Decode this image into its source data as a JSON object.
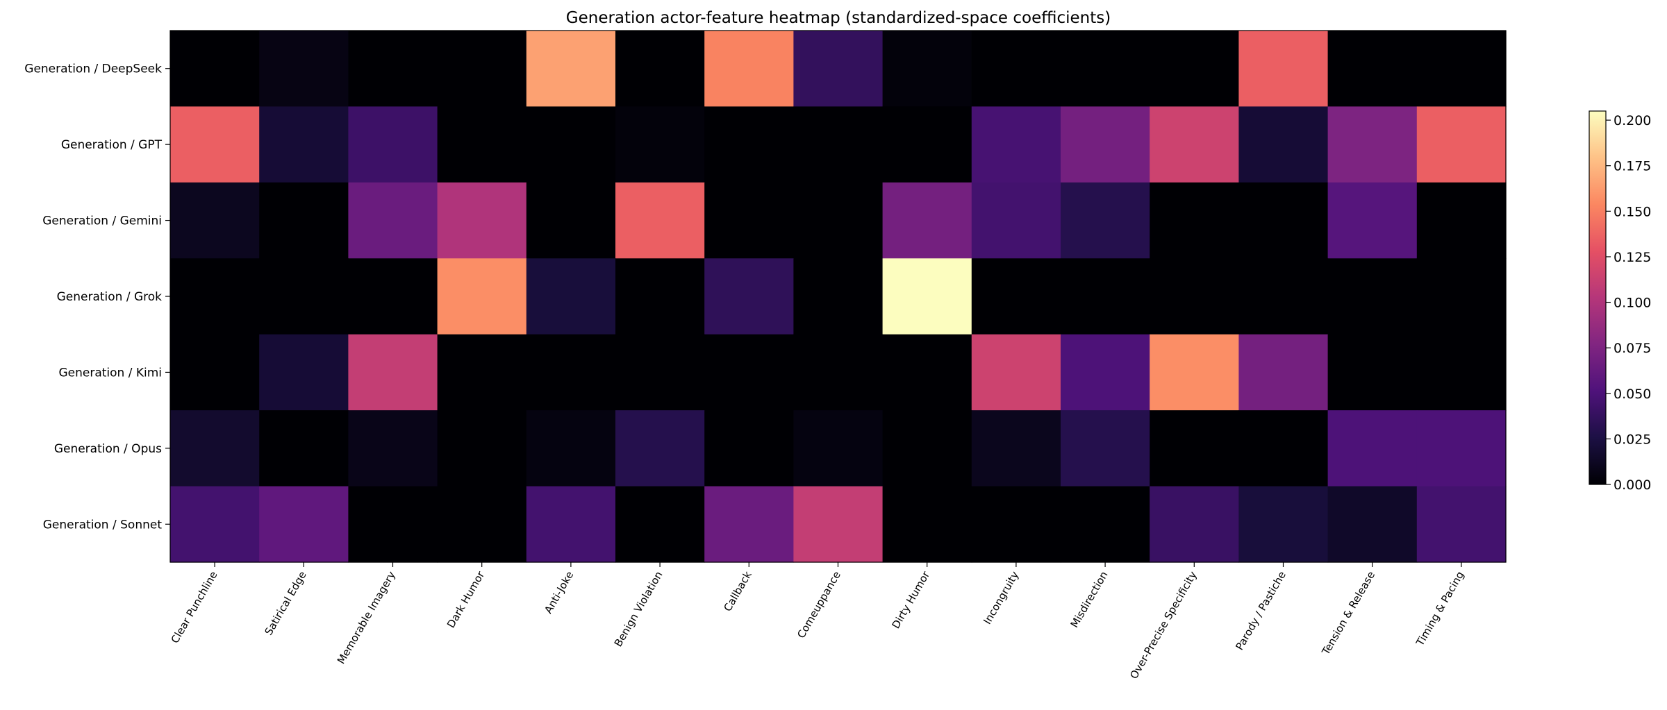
{
  "chart_data": {
    "type": "heatmap",
    "title": "Generation actor-feature heatmap (standardized-space coefficients)",
    "rows": [
      "Generation / DeepSeek",
      "Generation / GPT",
      "Generation / Gemini",
      "Generation / Grok",
      "Generation / Kimi",
      "Generation / Opus",
      "Generation / Sonnet"
    ],
    "columns": [
      "Clear Punchline",
      "Satirical Edge",
      "Memorable Imagery",
      "Dark Humor",
      "Anti-Joke",
      "Benign Violation",
      "Callback",
      "Comeuppance",
      "Dirty Humor",
      "Incongruity",
      "Misdirection",
      "Over-Precise Specificity",
      "Parody / Pastiche",
      "Tension & Release",
      "Timing & Pacing"
    ],
    "values": [
      [
        0.0,
        0.006,
        0.0,
        0.0,
        0.165,
        0.0,
        0.152,
        0.037,
        0.003,
        0.0,
        0.0,
        0.0,
        0.135,
        0.0,
        0.0
      ],
      [
        0.135,
        0.02,
        0.042,
        0.0,
        0.0,
        0.003,
        0.0,
        0.0,
        0.0,
        0.047,
        0.07,
        0.115,
        0.02,
        0.075,
        0.135
      ],
      [
        0.011,
        0.0,
        0.065,
        0.1,
        0.0,
        0.135,
        0.0,
        0.0,
        0.07,
        0.045,
        0.03,
        0.0,
        0.0,
        0.055,
        0.0
      ],
      [
        0.0,
        0.0,
        0.0,
        0.157,
        0.022,
        0.0,
        0.035,
        0.0,
        0.205,
        0.0,
        0.0,
        0.0,
        0.0,
        0.0,
        0.0
      ],
      [
        0.0,
        0.02,
        0.11,
        0.0,
        0.0,
        0.0,
        0.0,
        0.0,
        0.0,
        0.115,
        0.05,
        0.157,
        0.07,
        0.0,
        0.0
      ],
      [
        0.017,
        0.0,
        0.008,
        0.0,
        0.005,
        0.03,
        0.0,
        0.005,
        0.0,
        0.01,
        0.03,
        0.0,
        0.0,
        0.05,
        0.05
      ],
      [
        0.045,
        0.06,
        0.0,
        0.0,
        0.045,
        0.0,
        0.065,
        0.11,
        0.0,
        0.0,
        0.0,
        0.04,
        0.022,
        0.015,
        0.045
      ]
    ],
    "colormap": "magma",
    "vmin": 0.0,
    "vmax": 0.205,
    "colorbar_ticks": [
      "0.000",
      "0.025",
      "0.050",
      "0.075",
      "0.100",
      "0.125",
      "0.150",
      "0.175",
      "0.200"
    ],
    "colorbar_tick_values": [
      0.0,
      0.025,
      0.05,
      0.075,
      0.1,
      0.125,
      0.15,
      0.175,
      0.2
    ],
    "xlabel": "",
    "ylabel": "",
    "x_tick_rotation": "60 degrees"
  }
}
